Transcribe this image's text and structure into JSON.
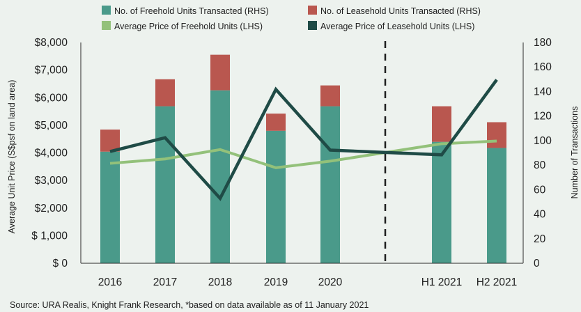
{
  "chart_data": {
    "type": "bar",
    "categories": [
      "2016",
      "2017",
      "2018",
      "2019",
      "2020",
      "H1 2021",
      "H2 2021"
    ],
    "series": [
      {
        "name": "No. of Freehold Units Transacted (RHS)",
        "kind": "bar",
        "axis": "right",
        "color": "#4a9a8a",
        "values": [
          91,
          128,
          141,
          108,
          128,
          99,
          94
        ]
      },
      {
        "name": "No. of Leasehold Units Transacted (RHS)",
        "kind": "bar",
        "axis": "right",
        "color": "#b9574f",
        "values": [
          18,
          22,
          29,
          14,
          17,
          29,
          21
        ]
      },
      {
        "name": "Average Price of Freehold Units (LHS)",
        "kind": "line",
        "axis": "left",
        "color": "#93c17a",
        "values": [
          3620,
          3780,
          4120,
          3460,
          3700,
          4330,
          4430
        ]
      },
      {
        "name": "Average Price of Leasehold Units (LHS)",
        "kind": "line",
        "axis": "left",
        "color": "#1f4b46",
        "values": [
          4050,
          4550,
          2350,
          6300,
          4100,
          3930,
          6650
        ]
      }
    ],
    "ylabel_left": "Average Unit Price (S$psf on land area)",
    "ylabel_right": "Number of Transactions",
    "ylim_left": [
      0,
      8000
    ],
    "ylim_right": [
      0,
      180
    ],
    "yticks_left": [
      "$ 0",
      "$ 1,000",
      "$2,000",
      "$3,000",
      "$4,000",
      "$5,000",
      "$6,000",
      "$7,000",
      "$8,000"
    ],
    "yticks_right": [
      "0",
      "20",
      "40",
      "60",
      "80",
      "100",
      "120",
      "140",
      "160",
      "180"
    ],
    "legend_position": "top",
    "grid": false,
    "divider_after_category": "2020"
  },
  "source": "Source: URA Realis, Knight Frank Research, *based on data available as of 11 January 2021"
}
